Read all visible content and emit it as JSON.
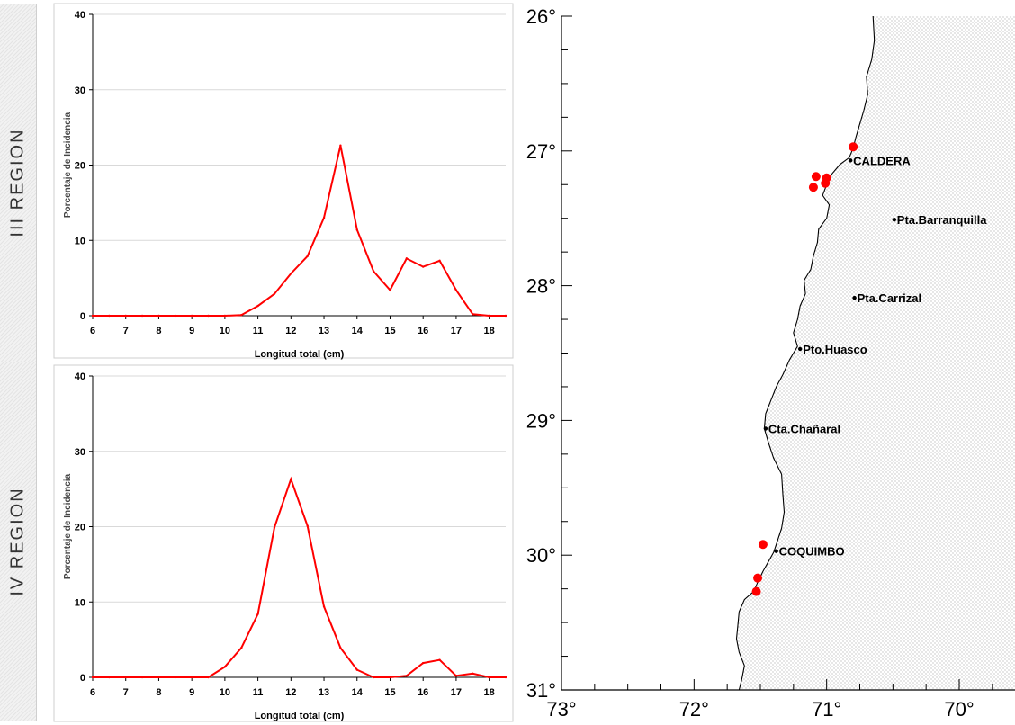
{
  "chart_data": [
    {
      "type": "line",
      "region_label": "III REGION",
      "title": "",
      "xlabel": "Longitud total (cm)",
      "ylabel": "Porcentaje de Incidencia",
      "xlim": [
        6,
        18.5
      ],
      "ylim": [
        0,
        40
      ],
      "xticks": [
        6,
        7,
        8,
        9,
        10,
        11,
        12,
        13,
        14,
        15,
        16,
        17,
        18
      ],
      "yticks": [
        0,
        10,
        20,
        30,
        40
      ],
      "grid": true,
      "color": "#ff0000",
      "x": [
        6,
        6.5,
        7,
        7.5,
        8,
        8.5,
        9,
        9.5,
        10,
        10.5,
        11,
        11.5,
        12,
        12.5,
        13,
        13.5,
        14,
        14.5,
        15,
        15.5,
        16,
        16.5,
        17,
        17.5,
        18,
        18.5
      ],
      "y": [
        0,
        0,
        0,
        0,
        0,
        0,
        0,
        0,
        0,
        0.1,
        1.3,
        2.9,
        5.6,
        7.9,
        13.0,
        22.6,
        11.4,
        5.9,
        3.4,
        7.6,
        6.5,
        7.3,
        3.4,
        0.2,
        0,
        0
      ]
    },
    {
      "type": "line",
      "region_label": "IV REGION",
      "title": "",
      "xlabel": "Longitud total (cm)",
      "ylabel": "Porcentaje de Incidencia",
      "xlim": [
        6,
        18.5
      ],
      "ylim": [
        0,
        40
      ],
      "xticks": [
        6,
        7,
        8,
        9,
        10,
        11,
        12,
        13,
        14,
        15,
        16,
        17,
        18
      ],
      "yticks": [
        0,
        10,
        20,
        30,
        40
      ],
      "grid": true,
      "color": "#ff0000",
      "x": [
        6,
        6.5,
        7,
        7.5,
        8,
        8.5,
        9,
        9.5,
        10,
        10.5,
        11,
        11.5,
        12,
        12.5,
        13,
        13.5,
        14,
        14.5,
        15,
        15.5,
        16,
        16.5,
        17,
        17.5,
        18,
        18.5
      ],
      "y": [
        0,
        0,
        0,
        0,
        0,
        0,
        0,
        0,
        1.4,
        3.9,
        8.4,
        19.9,
        26.3,
        20.1,
        9.4,
        3.9,
        1.0,
        0,
        0,
        0.2,
        1.9,
        2.3,
        0.2,
        0.5,
        0,
        0
      ]
    },
    {
      "type": "scatter",
      "title": "",
      "xlim": [
        73,
        69.5
      ],
      "ylim": [
        31,
        26
      ],
      "xticks": [
        73,
        72,
        71,
        70
      ],
      "yticks": [
        26,
        27,
        28,
        29,
        30,
        31
      ],
      "xtick_labels": [
        "73°",
        "72°",
        "71°",
        "70°"
      ],
      "ytick_labels": [
        "26°",
        "27°",
        "28°",
        "29°",
        "30°",
        "31°"
      ],
      "marker_color": "#ff0000",
      "land_fill": "dotted",
      "points": [
        {
          "lon": 70.8,
          "lat": 26.97
        },
        {
          "lon": 71.08,
          "lat": 27.19
        },
        {
          "lon": 71.1,
          "lat": 27.27
        },
        {
          "lon": 71.0,
          "lat": 27.2
        },
        {
          "lon": 71.01,
          "lat": 27.24
        },
        {
          "lon": 71.48,
          "lat": 29.92
        },
        {
          "lon": 71.52,
          "lat": 30.17
        },
        {
          "lon": 71.53,
          "lat": 30.27
        }
      ],
      "places": [
        {
          "name": "CALDERA",
          "lon": 70.82,
          "lat": 27.07
        },
        {
          "name": "Pta.Barranquilla",
          "lon": 70.49,
          "lat": 27.51
        },
        {
          "name": "Pta.Carrizal",
          "lon": 70.79,
          "lat": 28.09
        },
        {
          "name": "Pto.Huasco",
          "lon": 71.2,
          "lat": 28.47
        },
        {
          "name": "Cta.Chañaral",
          "lon": 71.46,
          "lat": 29.06
        },
        {
          "name": "COQUIMBO",
          "lon": 71.38,
          "lat": 29.97
        }
      ]
    }
  ]
}
